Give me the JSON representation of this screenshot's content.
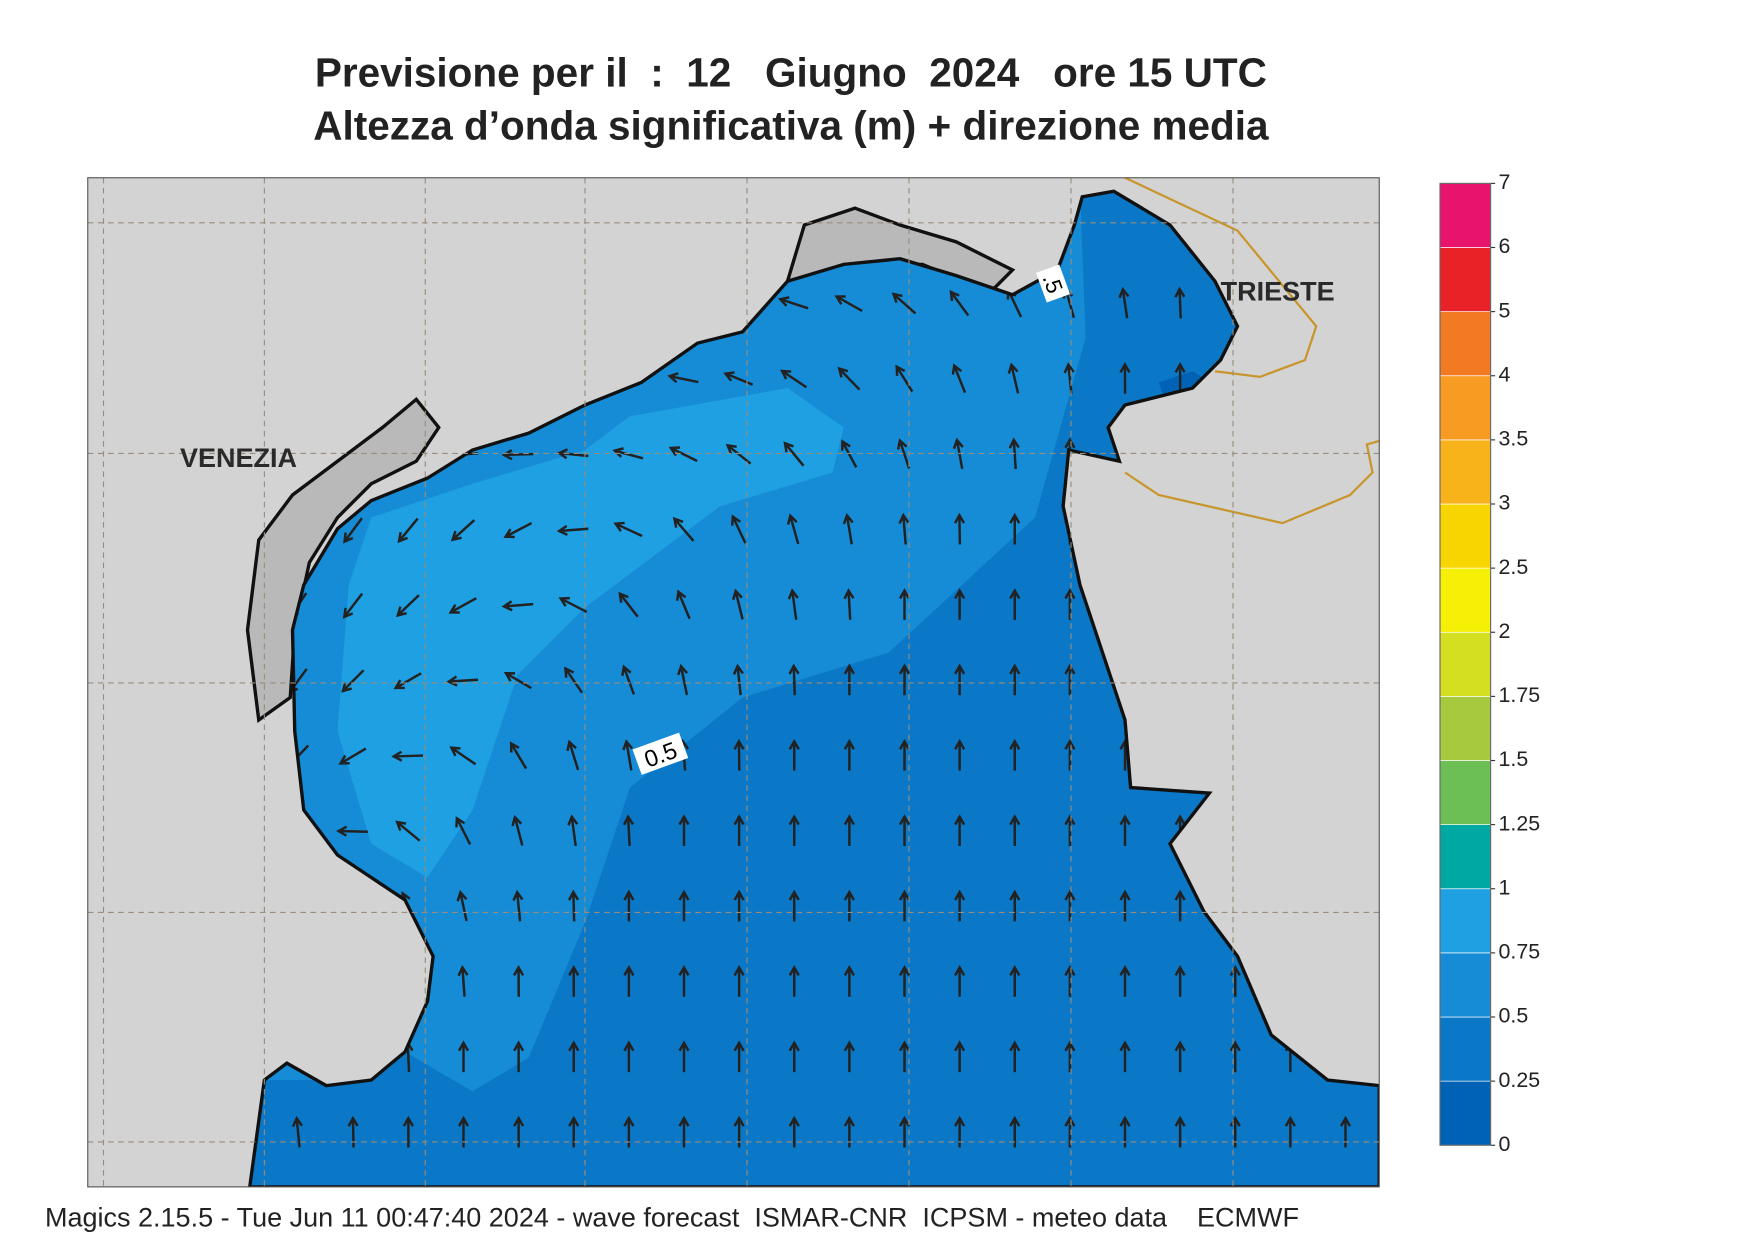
{
  "title": [
    "Previsione per il  :  12   Giugno  2024   ore 15 UTC",
    "Altezza d’onda significativa (m) + direzione media"
  ],
  "labels": {
    "cities": [
      "VENEZIA",
      "TRIESTE"
    ],
    "contours": [
      "0.5",
      ".5"
    ]
  },
  "colorbar": {
    "levels": [
      0,
      0.25,
      0.5,
      0.75,
      1,
      1.25,
      1.5,
      1.75,
      2,
      2.5,
      3,
      3.5,
      4,
      5,
      6,
      7
    ],
    "colors": [
      "#0062b4",
      "#0a78c6",
      "#168cd6",
      "#1fa0e2",
      "#00a8a4",
      "#6cbf55",
      "#a6c93d",
      "#d5df22",
      "#f6ef06",
      "#f8d400",
      "#f8b21a",
      "#f89b22",
      "#f17a22",
      "#e82226",
      "#e8136c"
    ]
  },
  "footer": "Magics 2.15.5 - Tue Jun 11 00:47:40 2024 - wave forecast  ISMAR-CNR  ICPSM - meteo data    ECMWF"
}
